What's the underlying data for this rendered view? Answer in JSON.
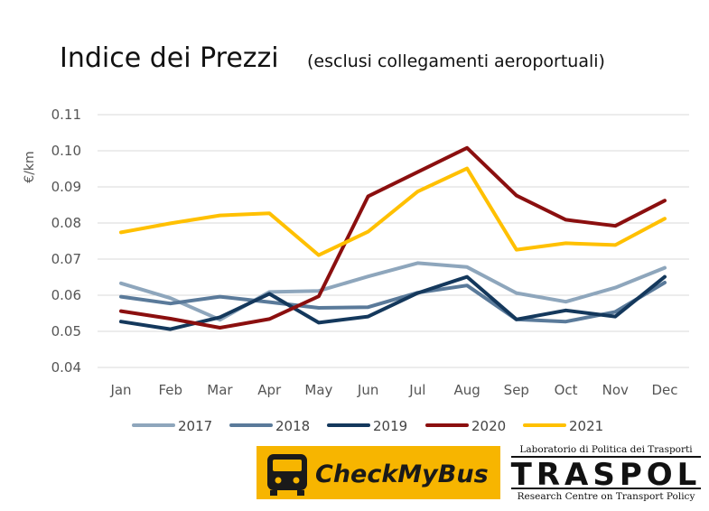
{
  "chart_data": {
    "type": "line",
    "title": "Indice dei Prezzi",
    "subtitle": "(esclusi collegamenti aeroportuali)",
    "ylabel": "€/km",
    "xlabel": "",
    "categories": [
      "Jan",
      "Feb",
      "Mar",
      "Apr",
      "May",
      "Jun",
      "Jul",
      "Aug",
      "Sep",
      "Oct",
      "Nov",
      "Dec"
    ],
    "ylim": [
      0.04,
      0.11
    ],
    "yticks": [
      "0.04",
      "0.05",
      "0.06",
      "0.07",
      "0.08",
      "0.09",
      "0.10",
      "0.11"
    ],
    "grid": true,
    "legend_position": "bottom",
    "series": [
      {
        "name": "2017",
        "color": "#8ea6bc",
        "values": [
          0.0633,
          0.0592,
          0.0532,
          0.0609,
          0.0612,
          0.0652,
          0.0689,
          0.0678,
          0.0606,
          0.0582,
          0.0621,
          0.0676
        ]
      },
      {
        "name": "2018",
        "color": "#5a7a9a",
        "values": [
          0.0596,
          0.0577,
          0.0596,
          0.0581,
          0.0565,
          0.0567,
          0.0607,
          0.0627,
          0.0533,
          0.0527,
          0.0554,
          0.0635
        ]
      },
      {
        "name": "2019",
        "color": "#14385c",
        "values": [
          0.0527,
          0.0506,
          0.0539,
          0.0604,
          0.0524,
          0.0541,
          0.0606,
          0.0651,
          0.0533,
          0.0558,
          0.0541,
          0.0651
        ]
      },
      {
        "name": "2020",
        "color": "#8b0f0f",
        "values": [
          0.0556,
          0.0535,
          0.051,
          0.0534,
          0.0597,
          0.0874,
          0.0941,
          0.1008,
          0.0876,
          0.0809,
          0.0792,
          0.0862
        ]
      },
      {
        "name": "2021",
        "color": "#ffc000",
        "values": [
          0.0774,
          0.0799,
          0.0821,
          0.0827,
          0.0711,
          0.0776,
          0.0887,
          0.0951,
          0.0726,
          0.0744,
          0.0739,
          0.0812
        ]
      }
    ]
  },
  "logos": {
    "checkmybus": {
      "text": "CheckMyBus",
      "bg_color": "#f7b500"
    },
    "traspol": {
      "top": "Laboratorio di Politica dei Trasporti",
      "name": "TRASPOL",
      "bottom": "Research Centre on Transport Policy"
    }
  }
}
